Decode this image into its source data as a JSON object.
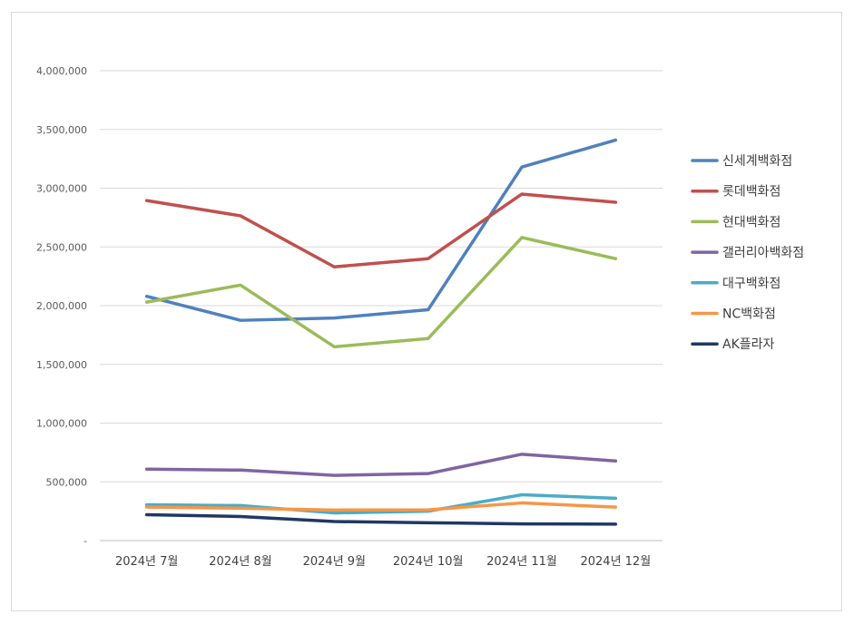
{
  "chart_data": {
    "type": "line",
    "categories": [
      "2024년 7월",
      "2024년 8월",
      "2024년 9월",
      "2024년 10월",
      "2024년 11월",
      "2024년 12월"
    ],
    "y_tick_labels": [
      "-",
      "500,000",
      "1,000,000",
      "1,500,000",
      "2,000,000",
      "2,500,000",
      "3,000,000",
      "3,500,000",
      "4,000,000"
    ],
    "ylim": [
      0,
      4000000
    ],
    "grid": true,
    "legend_position": "right",
    "series": [
      {
        "name": "신세계백화점",
        "color": "#4f81bd",
        "values": [
          2080000,
          1875000,
          1895000,
          1965000,
          3180000,
          3410000
        ]
      },
      {
        "name": "롯데백화점",
        "color": "#c0504d",
        "values": [
          2895000,
          2765000,
          2330000,
          2400000,
          2950000,
          2880000
        ]
      },
      {
        "name": "현대백화점",
        "color": "#9bbb59",
        "values": [
          2030000,
          2175000,
          1650000,
          1720000,
          2580000,
          2400000
        ]
      },
      {
        "name": "갤러리아백화점",
        "color": "#8064a2",
        "values": [
          608000,
          600000,
          555000,
          570000,
          735000,
          678000
        ]
      },
      {
        "name": "대구백화점",
        "color": "#4bacc6",
        "values": [
          305000,
          298000,
          235000,
          250000,
          390000,
          360000
        ]
      },
      {
        "name": "NC백화점",
        "color": "#f79646",
        "values": [
          285000,
          275000,
          260000,
          262000,
          320000,
          285000
        ]
      },
      {
        "name": "AK플라자",
        "color": "#1f3864",
        "values": [
          220000,
          205000,
          162000,
          152000,
          142000,
          140000
        ]
      }
    ]
  }
}
